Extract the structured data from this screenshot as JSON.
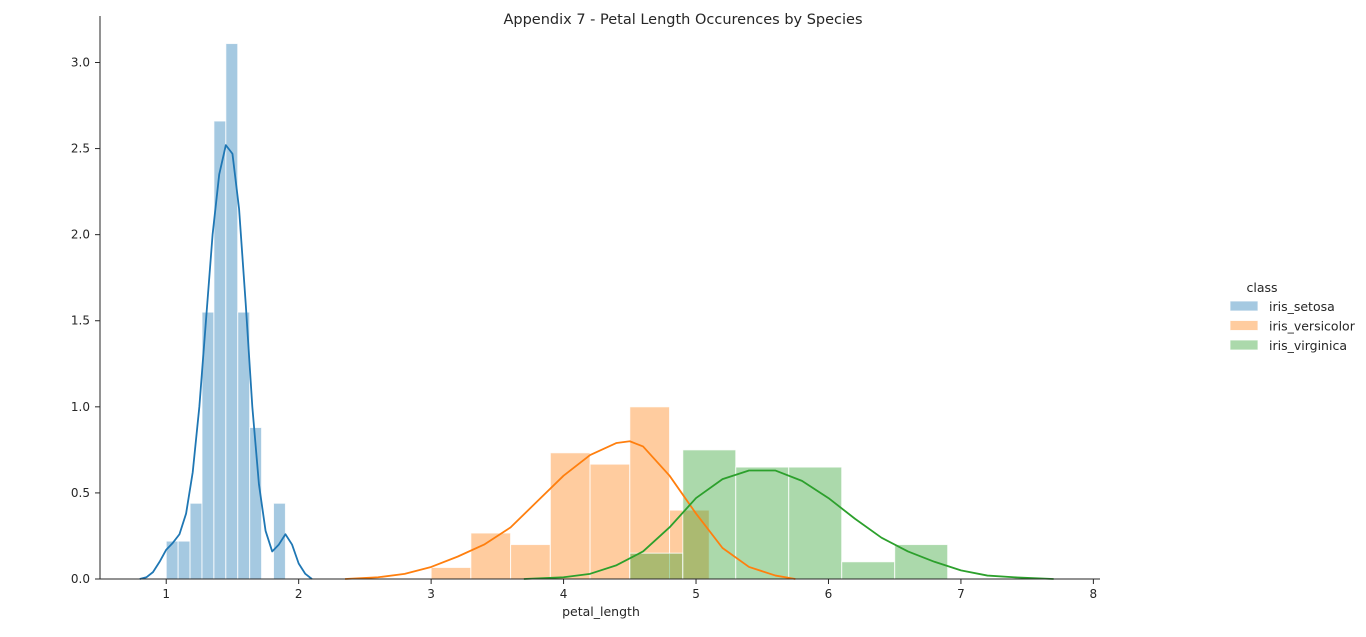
{
  "chart_data": {
    "type": "histogram",
    "title": "Appendix 7 - Petal Length Occurences by Species",
    "xlabel": "petal_length",
    "ylabel": "",
    "xlim": [
      0.5,
      8.05
    ],
    "ylim": [
      0,
      3.27
    ],
    "x_ticks": [
      1,
      2,
      3,
      4,
      5,
      6,
      7,
      8
    ],
    "y_ticks": [
      0.0,
      0.5,
      1.0,
      1.5,
      2.0,
      2.5,
      3.0
    ],
    "x_tick_labels": [
      "1",
      "2",
      "3",
      "4",
      "5",
      "6",
      "7",
      "8"
    ],
    "y_tick_labels": [
      "0.0",
      "0.5",
      "1.0",
      "1.5",
      "2.0",
      "2.5",
      "3.0"
    ],
    "grid": false,
    "legend": {
      "title": "class",
      "position": "right"
    },
    "series": [
      {
        "name": "iris_setosa",
        "color": "#1f77b4",
        "bins": [
          {
            "x0": 1.0,
            "x1": 1.09,
            "height": 0.22
          },
          {
            "x0": 1.09,
            "x1": 1.18,
            "height": 0.22
          },
          {
            "x0": 1.18,
            "x1": 1.27,
            "height": 0.44
          },
          {
            "x0": 1.27,
            "x1": 1.36,
            "height": 1.55
          },
          {
            "x0": 1.36,
            "x1": 1.45,
            "height": 2.66
          },
          {
            "x0": 1.45,
            "x1": 1.54,
            "height": 3.11
          },
          {
            "x0": 1.54,
            "x1": 1.63,
            "height": 1.55
          },
          {
            "x0": 1.63,
            "x1": 1.72,
            "height": 0.88
          },
          {
            "x0": 1.72,
            "x1": 1.81,
            "height": 0.0
          },
          {
            "x0": 1.81,
            "x1": 1.9,
            "height": 0.44
          }
        ],
        "kde": [
          [
            0.8,
            0.0
          ],
          [
            0.85,
            0.01
          ],
          [
            0.9,
            0.04
          ],
          [
            0.95,
            0.1
          ],
          [
            1.0,
            0.17
          ],
          [
            1.05,
            0.21
          ],
          [
            1.1,
            0.26
          ],
          [
            1.15,
            0.38
          ],
          [
            1.2,
            0.62
          ],
          [
            1.25,
            1.0
          ],
          [
            1.3,
            1.5
          ],
          [
            1.35,
            2.0
          ],
          [
            1.4,
            2.35
          ],
          [
            1.45,
            2.52
          ],
          [
            1.5,
            2.47
          ],
          [
            1.55,
            2.15
          ],
          [
            1.6,
            1.6
          ],
          [
            1.65,
            1.0
          ],
          [
            1.7,
            0.55
          ],
          [
            1.75,
            0.28
          ],
          [
            1.8,
            0.16
          ],
          [
            1.85,
            0.2
          ],
          [
            1.9,
            0.26
          ],
          [
            1.95,
            0.2
          ],
          [
            2.0,
            0.09
          ],
          [
            2.05,
            0.03
          ],
          [
            2.1,
            0.0
          ]
        ]
      },
      {
        "name": "iris_versicolor",
        "color": "#ff7f0e",
        "bins": [
          {
            "x0": 3.0,
            "x1": 3.3,
            "height": 0.067
          },
          {
            "x0": 3.3,
            "x1": 3.6,
            "height": 0.267
          },
          {
            "x0": 3.6,
            "x1": 3.9,
            "height": 0.2
          },
          {
            "x0": 3.9,
            "x1": 4.2,
            "height": 0.733
          },
          {
            "x0": 4.2,
            "x1": 4.5,
            "height": 0.667
          },
          {
            "x0": 4.5,
            "x1": 4.8,
            "height": 1.0
          },
          {
            "x0": 4.8,
            "x1": 5.1,
            "height": 0.4
          }
        ],
        "kde": [
          [
            2.35,
            0.0
          ],
          [
            2.6,
            0.01
          ],
          [
            2.8,
            0.03
          ],
          [
            3.0,
            0.07
          ],
          [
            3.2,
            0.13
          ],
          [
            3.4,
            0.2
          ],
          [
            3.6,
            0.3
          ],
          [
            3.8,
            0.45
          ],
          [
            4.0,
            0.6
          ],
          [
            4.2,
            0.72
          ],
          [
            4.4,
            0.79
          ],
          [
            4.5,
            0.8
          ],
          [
            4.6,
            0.77
          ],
          [
            4.8,
            0.6
          ],
          [
            5.0,
            0.38
          ],
          [
            5.2,
            0.18
          ],
          [
            5.4,
            0.07
          ],
          [
            5.6,
            0.02
          ],
          [
            5.75,
            0.0
          ]
        ]
      },
      {
        "name": "iris_virginica",
        "color": "#2ca02c",
        "bins": [
          {
            "x0": 4.5,
            "x1": 4.9,
            "height": 0.15
          },
          {
            "x0": 4.9,
            "x1": 5.3,
            "height": 0.75
          },
          {
            "x0": 5.3,
            "x1": 5.7,
            "height": 0.65
          },
          {
            "x0": 5.7,
            "x1": 6.1,
            "height": 0.65
          },
          {
            "x0": 6.1,
            "x1": 6.5,
            "height": 0.1
          },
          {
            "x0": 6.5,
            "x1": 6.9,
            "height": 0.2
          }
        ],
        "kde": [
          [
            3.7,
            0.0
          ],
          [
            4.0,
            0.01
          ],
          [
            4.2,
            0.03
          ],
          [
            4.4,
            0.08
          ],
          [
            4.6,
            0.16
          ],
          [
            4.8,
            0.3
          ],
          [
            5.0,
            0.47
          ],
          [
            5.2,
            0.58
          ],
          [
            5.4,
            0.63
          ],
          [
            5.6,
            0.63
          ],
          [
            5.8,
            0.57
          ],
          [
            6.0,
            0.47
          ],
          [
            6.2,
            0.35
          ],
          [
            6.4,
            0.24
          ],
          [
            6.6,
            0.16
          ],
          [
            6.8,
            0.1
          ],
          [
            7.0,
            0.05
          ],
          [
            7.2,
            0.02
          ],
          [
            7.4,
            0.01
          ],
          [
            7.7,
            0.0
          ]
        ]
      }
    ]
  }
}
